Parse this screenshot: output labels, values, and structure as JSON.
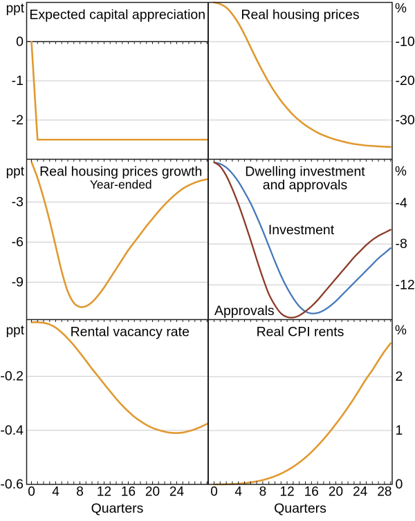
{
  "figure": {
    "x_axis_title": "Quarters",
    "unit_left_label": "ppt",
    "unit_right_label": "%"
  },
  "colors": {
    "orange": "#E0992F",
    "blue": "#4679B9",
    "brown": "#8B3A27",
    "grid": "#C8C8C8",
    "frame": "#1F1F1F",
    "text": "#000000"
  },
  "chart_data": [
    {
      "type": "line",
      "panel": "top-left",
      "title": "Expected capital appreciation",
      "unit": "ppt",
      "axis_side": "left",
      "ylim": [
        1,
        -3
      ],
      "yticks": [
        0,
        -1,
        -2
      ],
      "zero_line": true,
      "straight": true,
      "x_start": 0,
      "x_step": 1,
      "series": [
        {
          "name": "Expected capital appreciation",
          "color": "orange",
          "values": [
            0,
            -2.5,
            -2.5,
            -2.5,
            -2.5,
            -2.5,
            -2.5,
            -2.5,
            -2.5,
            -2.5,
            -2.5,
            -2.5,
            -2.5,
            -2.5,
            -2.5,
            -2.5,
            -2.5,
            -2.5,
            -2.5,
            -2.5,
            -2.5,
            -2.5,
            -2.5,
            -2.5,
            -2.5,
            -2.5,
            -2.5,
            -2.5,
            -2.5,
            -2.5
          ]
        }
      ],
      "annotations": []
    },
    {
      "type": "line",
      "panel": "top-right",
      "title": "Real housing prices",
      "unit": "%",
      "axis_side": "right",
      "ylim": [
        0,
        -40
      ],
      "yticks": [
        -10,
        -20,
        -30
      ],
      "x_start": 0,
      "x_step": 1,
      "series": [
        {
          "name": "Real housing prices",
          "color": "orange",
          "values": [
            0,
            -0.4,
            -1.3,
            -3,
            -5.3,
            -8.2,
            -11.4,
            -14.6,
            -17.6,
            -20.4,
            -22.9,
            -25.1,
            -27,
            -28.7,
            -30.1,
            -31.3,
            -32.3,
            -33.2,
            -33.9,
            -34.5,
            -35,
            -35.4,
            -35.8,
            -36.1,
            -36.3,
            -36.5,
            -36.6,
            -36.7,
            -36.8,
            -36.85
          ]
        }
      ],
      "annotations": []
    },
    {
      "type": "line",
      "panel": "middle-left",
      "title": "Real housing prices growth",
      "subtitle": "Year-ended",
      "title_dx": 5,
      "unit": "ppt",
      "axis_side": "left",
      "ylim": [
        0.2,
        -11.8
      ],
      "yticks": [
        -3,
        -6,
        -9
      ],
      "x_start": 0,
      "x_step": 1,
      "series": [
        {
          "name": "Real housing prices growth year-ended",
          "color": "orange",
          "values": [
            0,
            -1.2,
            -2.7,
            -4.4,
            -6.3,
            -8.2,
            -9.7,
            -10.55,
            -10.85,
            -10.8,
            -10.5,
            -10,
            -9.4,
            -8.7,
            -8,
            -7.3,
            -6.6,
            -6,
            -5.4,
            -4.8,
            -4.25,
            -3.7,
            -3.2,
            -2.75,
            -2.35,
            -2,
            -1.75,
            -1.55,
            -1.4,
            -1.3
          ]
        }
      ],
      "annotations": []
    },
    {
      "type": "line",
      "panel": "middle-right",
      "title": "Dwelling investment and approvals",
      "title_lines": [
        "Dwelling investment",
        "and approvals"
      ],
      "title_dx": 7,
      "unit": "%",
      "axis_side": "right",
      "ylim": [
        0.3,
        -15.4
      ],
      "yticks": [
        -4,
        -8,
        -12
      ],
      "x_start": 0,
      "x_step": 1,
      "series": [
        {
          "name": "Investment",
          "color": "blue",
          "values": [
            0,
            -0.15,
            -0.5,
            -1.1,
            -1.9,
            -2.9,
            -4,
            -5.3,
            -6.7,
            -8.2,
            -9.7,
            -11.1,
            -12.3,
            -13.3,
            -14.1,
            -14.6,
            -14.8,
            -14.75,
            -14.5,
            -14.1,
            -13.6,
            -13,
            -12.4,
            -11.8,
            -11.2,
            -10.6,
            -10,
            -9.4,
            -8.9,
            -8.4
          ]
        },
        {
          "name": "Approvals",
          "color": "brown",
          "values": [
            0,
            -0.4,
            -1.3,
            -2.6,
            -4.1,
            -5.8,
            -7.6,
            -9.5,
            -11.3,
            -12.9,
            -14,
            -14.8,
            -15.15,
            -15.2,
            -15,
            -14.6,
            -14.1,
            -13.5,
            -12.8,
            -12.1,
            -11.4,
            -10.7,
            -10,
            -9.3,
            -8.7,
            -8.1,
            -7.6,
            -7.2,
            -6.9,
            -6.6
          ]
        }
      ],
      "annotations": [
        {
          "text": "Investment",
          "color": "blue",
          "q": 8.9,
          "value": -7.05
        },
        {
          "text": "Approvals",
          "color": "brown",
          "q": 0.05,
          "value": -14.95
        }
      ]
    },
    {
      "type": "line",
      "panel": "bottom-left",
      "title": "Rental vacancy rate",
      "title_dx": 18,
      "unit": "ppt",
      "axis_side": "left",
      "ylim": [
        0.01,
        -0.6
      ],
      "yticks": [
        -0.2,
        -0.4,
        -0.6
      ],
      "xticks": [
        0,
        4,
        8,
        12,
        16,
        20,
        24
      ],
      "xlabel": "Quarters",
      "x_start": 0,
      "x_step": 1,
      "series": [
        {
          "name": "Rental vacancy rate",
          "color": "orange",
          "values": [
            0,
            0,
            -0.002,
            -0.008,
            -0.02,
            -0.038,
            -0.06,
            -0.085,
            -0.113,
            -0.142,
            -0.172,
            -0.2,
            -0.228,
            -0.256,
            -0.283,
            -0.308,
            -0.33,
            -0.35,
            -0.366,
            -0.38,
            -0.391,
            -0.399,
            -0.405,
            -0.409,
            -0.41,
            -0.408,
            -0.403,
            -0.396,
            -0.387,
            -0.376
          ]
        }
      ],
      "annotations": []
    },
    {
      "type": "line",
      "panel": "bottom-right",
      "title": "Real CPI rents",
      "unit": "%",
      "axis_side": "right",
      "ylim": [
        3.06,
        0
      ],
      "yticks": [
        2,
        1,
        0
      ],
      "xticks": [
        0,
        4,
        8,
        12,
        16,
        20,
        24,
        28
      ],
      "xlabel": "Quarters",
      "x_start": 0,
      "x_step": 1,
      "series": [
        {
          "name": "Real CPI rents",
          "color": "orange",
          "values": [
            0,
            0,
            0.002,
            0.006,
            0.012,
            0.022,
            0.036,
            0.055,
            0.08,
            0.112,
            0.152,
            0.2,
            0.258,
            0.327,
            0.407,
            0.497,
            0.6,
            0.715,
            0.84,
            0.975,
            1.12,
            1.27,
            1.43,
            1.6,
            1.78,
            1.96,
            2.12,
            2.3,
            2.47,
            2.62
          ]
        }
      ],
      "annotations": []
    }
  ]
}
